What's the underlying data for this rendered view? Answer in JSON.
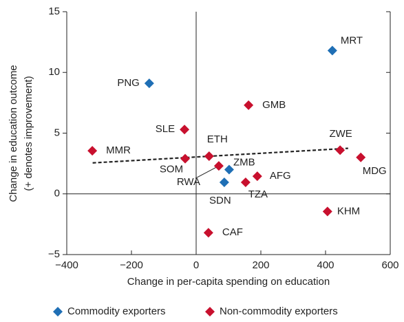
{
  "chart_data": {
    "type": "scatter",
    "xlabel": "Change in per-capita spending on education",
    "ylabel": [
      "Change in education outcome",
      "(+ denotes improvement)"
    ],
    "xlim": [
      -400,
      600
    ],
    "xticks": [
      {
        "value": -400,
        "label": "−400"
      },
      {
        "value": -200,
        "label": "−200"
      },
      0,
      200,
      400,
      600
    ],
    "ylim": [
      -5,
      15
    ],
    "yticks": [
      {
        "value": -5,
        "label": "−5"
      },
      0,
      5,
      10,
      15
    ],
    "series": [
      {
        "name": "Commodity exporters",
        "color": "#1f6fb5",
        "labels": [
          "MRT",
          "PNG",
          "ZMB",
          "SDN"
        ],
        "x": [
          421,
          -145,
          102,
          87
        ],
        "values": [
          11.8,
          9.1,
          2.0,
          0.95
        ]
      },
      {
        "name": "Non-commodity exporters",
        "color": "#c8102e",
        "labels": [
          "GMB",
          "SLE",
          "MMR",
          "SOM",
          "ETH",
          "RWA",
          "TZA",
          "AFG",
          "ZWE",
          "MDG",
          "KHM",
          "CAF"
        ],
        "x": [
          162,
          -36,
          -321,
          -34,
          40,
          70,
          153,
          189,
          445,
          509,
          406,
          38
        ],
        "values": [
          7.3,
          5.3,
          3.55,
          2.9,
          3.1,
          2.3,
          0.95,
          1.45,
          3.6,
          3.0,
          -1.45,
          -3.2
        ]
      }
    ],
    "trend_line": {
      "x": [
        -320,
        470
      ],
      "y": [
        2.55,
        3.75
      ]
    }
  }
}
